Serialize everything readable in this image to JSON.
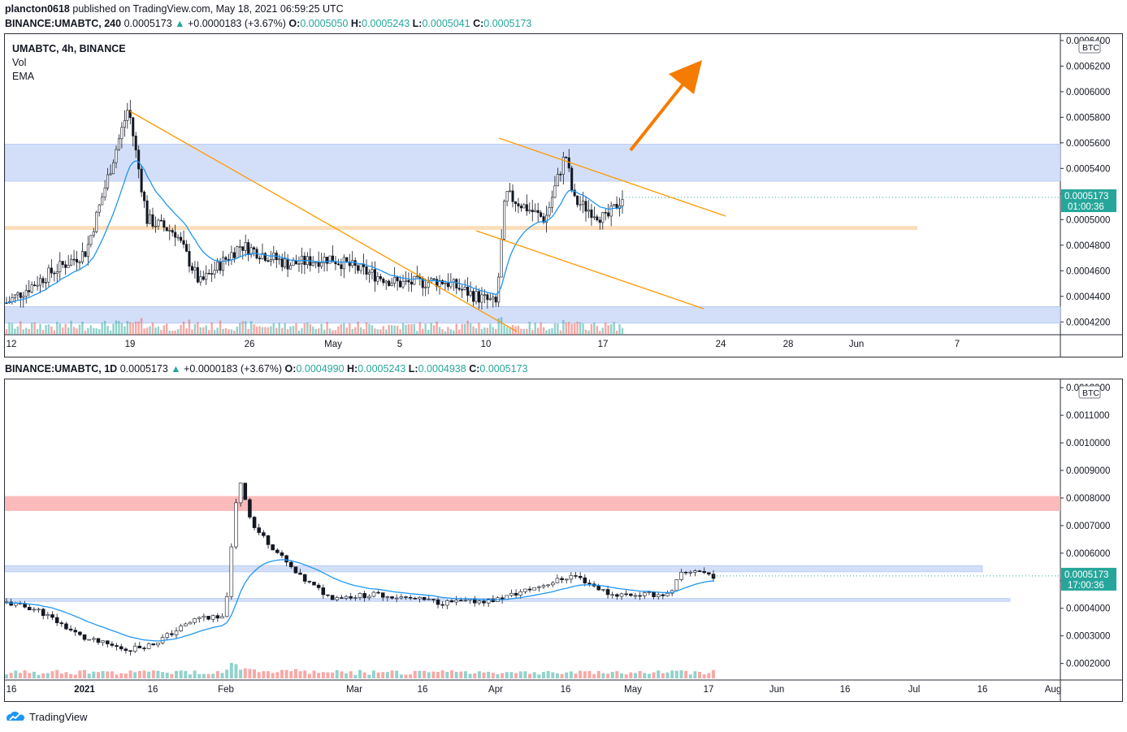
{
  "publish_line": {
    "author": "plancton0618",
    "text": "published on TradingView.com, May 18, 2021 06:59:25 UTC"
  },
  "top": {
    "header": {
      "symbol": "BINANCE:UMABTC, 240",
      "price": "0.0005173",
      "change": "+0.0000183 (+3.67%)",
      "o_label": "O:",
      "o": "0.0005050",
      "h_label": "H:",
      "h": "0.0005243",
      "l_label": "L:",
      "l": "0.0005041",
      "c_label": "C:",
      "c": "0.0005173"
    },
    "legend": [
      "UMABTC, 4h, BINANCE",
      "Vol",
      "EMA"
    ],
    "currency": "BTC",
    "price_tag": "0.0005173",
    "countdown": "01:00:36"
  },
  "bottom": {
    "header": {
      "symbol": "BINANCE:UMABTC, 1D",
      "price": "0.0005173",
      "change": "+0.0000183 (+3.67%)",
      "o_label": "O:",
      "o": "0.0004990",
      "h_label": "H:",
      "h": "0.0005243",
      "l_label": "L:",
      "l": "0.0004938",
      "c_label": "C:",
      "c": "0.0005173"
    },
    "currency": "BTC",
    "price_tag": "0.0005173",
    "countdown": "17:00:36"
  },
  "footer": {
    "brand": "TradingView"
  },
  "colors": {
    "up": "#26a69a",
    "down": "#ef5350",
    "ema": "#2196f3",
    "trendline": "#ff9800",
    "arrow": "#f57c00",
    "blue_zone": "#cfdcf8",
    "orange_zone": "#fbd9b0",
    "red_zone": "#fbb4b4"
  },
  "chart_data": [
    {
      "type": "candlestick",
      "title": "UMABTC, 4h, BINANCE",
      "indicators": [
        "Vol",
        "EMA"
      ],
      "y_unit": "BTC",
      "ylim": [
        0.00041,
        0.000645
      ],
      "y_ticks": [
        "0.0004200",
        "0.0004400",
        "0.0004600",
        "0.0004800",
        "0.0005000",
        "0.0005200",
        "0.0005400",
        "0.0005600",
        "0.0005800",
        "0.0006000",
        "0.0006200",
        "0.0006400"
      ],
      "x_tick_labels": [
        "12",
        "19",
        "26",
        "May",
        "5",
        "10",
        "17",
        "24",
        "28",
        "Jun",
        "7"
      ],
      "last_price": 0.0005173,
      "zones": [
        {
          "color": "blue",
          "from": 0.00053,
          "to": 0.000559
        },
        {
          "color": "orange",
          "from": 0.000492,
          "to": 0.000495
        },
        {
          "color": "blue",
          "from": 0.000419,
          "to": 0.000432
        }
      ],
      "price_anchors": [
        {
          "date": "Apr 12",
          "price": 0.000435
        },
        {
          "date": "Apr 15",
          "price": 0.00046
        },
        {
          "date": "Apr 17",
          "price": 0.000475
        },
        {
          "date": "Apr 19",
          "price": 0.000588
        },
        {
          "date": "Apr 20",
          "price": 0.0005
        },
        {
          "date": "Apr 22",
          "price": 0.00049
        },
        {
          "date": "Apr 24",
          "price": 0.00045
        },
        {
          "date": "Apr 26",
          "price": 0.00048
        },
        {
          "date": "Apr 28",
          "price": 0.000465
        },
        {
          "date": "May 1",
          "price": 0.00047
        },
        {
          "date": "May 3",
          "price": 0.00046
        },
        {
          "date": "May 5",
          "price": 0.00045
        },
        {
          "date": "May 7",
          "price": 0.000452
        },
        {
          "date": "May 9",
          "price": 0.00044
        },
        {
          "date": "May 10",
          "price": 0.000434
        },
        {
          "date": "May 11",
          "price": 0.00052
        },
        {
          "date": "May 12",
          "price": 0.00051
        },
        {
          "date": "May 13",
          "price": 0.0005
        },
        {
          "date": "May 14",
          "price": 0.000552
        },
        {
          "date": "May 15",
          "price": 0.000515
        },
        {
          "date": "May 17",
          "price": 0.0005
        },
        {
          "date": "May 18",
          "price": 0.0005173
        }
      ]
    },
    {
      "type": "candlestick",
      "title": "BINANCE:UMABTC, 1D",
      "y_unit": "BTC",
      "ylim": [
        0.00014,
        0.00123
      ],
      "y_ticks": [
        "0.0002000",
        "0.0003000",
        "0.0004000",
        "0.0005000",
        "0.0006000",
        "0.0007000",
        "0.0008000",
        "0.0009000",
        "0.0010000",
        "0.0011000",
        "0.0012000"
      ],
      "x_tick_labels": [
        "16",
        "2021",
        "16",
        "Feb",
        "Mar",
        "16",
        "Apr",
        "16",
        "May",
        "17",
        "Jun",
        "16",
        "Jul",
        "16",
        "Aug"
      ],
      "last_price": 0.0005173,
      "zones": [
        {
          "color": "red",
          "from": 0.000753,
          "to": 0.000807
        },
        {
          "color": "blue",
          "from": 0.000532,
          "to": 0.000555
        },
        {
          "color": "blue",
          "from": 0.000425,
          "to": 0.000436
        }
      ],
      "price_anchors": [
        {
          "date": "Dec 16",
          "price": 0.00042
        },
        {
          "date": "Dec 24",
          "price": 0.000395
        },
        {
          "date": "Jan 1",
          "price": 0.00029
        },
        {
          "date": "Jan 12",
          "price": 0.00025
        },
        {
          "date": "Jan 16",
          "price": 0.00027
        },
        {
          "date": "Jan 25",
          "price": 0.00037
        },
        {
          "date": "Feb 1",
          "price": 0.00036
        },
        {
          "date": "Feb 3",
          "price": 0.00088
        },
        {
          "date": "Feb 6",
          "price": 0.0007
        },
        {
          "date": "Feb 12",
          "price": 0.00062
        },
        {
          "date": "Feb 18",
          "price": 0.00052
        },
        {
          "date": "Feb 25",
          "price": 0.00044
        },
        {
          "date": "Mar 8",
          "price": 0.00045
        },
        {
          "date": "Mar 20",
          "price": 0.00042
        },
        {
          "date": "Apr 1",
          "price": 0.00043
        },
        {
          "date": "Apr 16",
          "price": 0.00052
        },
        {
          "date": "Apr 26",
          "price": 0.00045
        },
        {
          "date": "May 10",
          "price": 0.00045
        },
        {
          "date": "May 12",
          "price": 0.00052
        },
        {
          "date": "May 15",
          "price": 0.00054
        },
        {
          "date": "May 18",
          "price": 0.0005173
        }
      ]
    }
  ]
}
